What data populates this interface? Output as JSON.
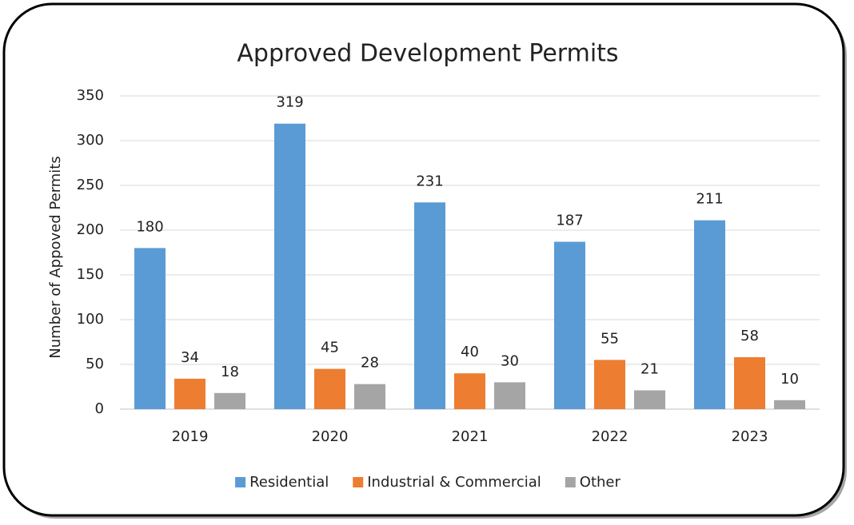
{
  "chart_data": {
    "type": "bar",
    "title": "Approved Development Permits",
    "y_label": "Number of Appoved Permits",
    "categories": [
      "2019",
      "2020",
      "2021",
      "2022",
      "2023"
    ],
    "series": [
      {
        "name": "Residential",
        "color": "#5b9bd5",
        "values": [
          180,
          319,
          231,
          187,
          211
        ]
      },
      {
        "name": "Industrial & Commercial",
        "color": "#ed7d31",
        "values": [
          34,
          45,
          40,
          55,
          58
        ]
      },
      {
        "name": "Other",
        "color": "#a5a5a5",
        "values": [
          18,
          28,
          30,
          21,
          10
        ]
      }
    ],
    "ylim": [
      0,
      350
    ],
    "yticks": [
      0,
      50,
      100,
      150,
      200,
      250,
      300,
      350
    ],
    "grid": true,
    "legend": "bottom"
  }
}
